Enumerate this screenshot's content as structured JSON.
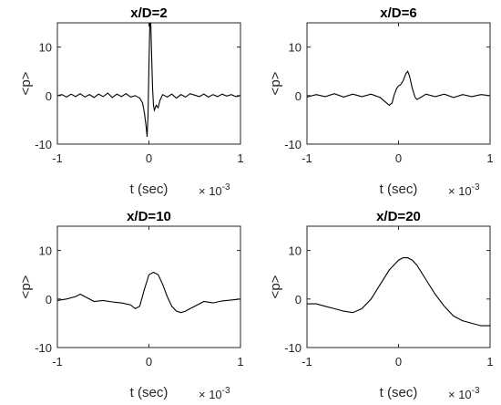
{
  "chart_data": [
    {
      "type": "line",
      "title": "x/D=2",
      "xlabel": "t (sec)",
      "ylabel": "<p>",
      "xlim": [
        -0.001,
        0.001
      ],
      "ylim": [
        -10,
        15
      ],
      "xticks": [
        -1,
        0,
        1
      ],
      "yticks": [
        -10,
        0,
        10
      ],
      "x_exponent_base": "× 10",
      "x_exponent": "-3",
      "series": [
        {
          "x": [
            -1.0,
            -0.95,
            -0.9,
            -0.85,
            -0.8,
            -0.75,
            -0.7,
            -0.65,
            -0.6,
            -0.55,
            -0.5,
            -0.45,
            -0.4,
            -0.35,
            -0.3,
            -0.25,
            -0.2,
            -0.15,
            -0.1,
            -0.07,
            -0.05,
            -0.03,
            -0.02,
            -0.01,
            0.0,
            0.01,
            0.02,
            0.03,
            0.04,
            0.05,
            0.06,
            0.08,
            0.1,
            0.12,
            0.15,
            0.2,
            0.25,
            0.3,
            0.35,
            0.4,
            0.45,
            0.5,
            0.55,
            0.6,
            0.65,
            0.7,
            0.75,
            0.8,
            0.85,
            0.9,
            0.95,
            1.0
          ],
          "y": [
            0.0,
            0.2,
            -0.3,
            0.3,
            -0.2,
            0.4,
            -0.3,
            0.2,
            -0.4,
            0.3,
            -0.2,
            0.5,
            -0.4,
            0.3,
            -0.2,
            0.4,
            -0.3,
            0.0,
            -0.5,
            -1.5,
            -3.5,
            -6.5,
            -8.5,
            -4.0,
            6.0,
            15.0,
            15.0,
            8.0,
            1.5,
            -2.0,
            -3.0,
            -2.0,
            -2.5,
            -1.0,
            0.2,
            -0.3,
            0.3,
            -0.5,
            0.2,
            -0.3,
            0.4,
            0.1,
            -0.2,
            0.3,
            -0.3,
            0.2,
            -0.2,
            0.3,
            -0.1,
            0.2,
            -0.2,
            0.0
          ]
        }
      ]
    },
    {
      "type": "line",
      "title": "x/D=6",
      "xlabel": "t (sec)",
      "ylabel": "<p>",
      "xlim": [
        -0.001,
        0.001
      ],
      "ylim": [
        -10,
        15
      ],
      "xticks": [
        -1,
        0,
        1
      ],
      "yticks": [
        -10,
        0,
        10
      ],
      "x_exponent_base": "× 10",
      "x_exponent": "-3",
      "series": [
        {
          "x": [
            -1.0,
            -0.9,
            -0.8,
            -0.7,
            -0.6,
            -0.5,
            -0.4,
            -0.3,
            -0.2,
            -0.15,
            -0.1,
            -0.07,
            -0.05,
            -0.02,
            0.0,
            0.02,
            0.05,
            0.08,
            0.1,
            0.12,
            0.15,
            0.18,
            0.2,
            0.25,
            0.3,
            0.4,
            0.5,
            0.6,
            0.7,
            0.8,
            0.9,
            1.0
          ],
          "y": [
            -0.3,
            0.2,
            -0.2,
            0.4,
            -0.3,
            0.3,
            -0.2,
            0.3,
            -0.4,
            -1.2,
            -2.0,
            -1.5,
            0.0,
            1.5,
            2.0,
            2.2,
            3.0,
            4.5,
            5.0,
            4.0,
            1.5,
            -0.3,
            -0.8,
            -0.3,
            0.3,
            -0.2,
            0.3,
            -0.4,
            0.2,
            -0.2,
            0.2,
            0.0
          ]
        }
      ]
    },
    {
      "type": "line",
      "title": "x/D=10",
      "xlabel": "t (sec)",
      "ylabel": "<p>",
      "xlim": [
        -0.001,
        0.001
      ],
      "ylim": [
        -10,
        15
      ],
      "xticks": [
        -1,
        0,
        1
      ],
      "yticks": [
        -10,
        0,
        10
      ],
      "x_exponent_base": "× 10",
      "x_exponent": "-3",
      "series": [
        {
          "x": [
            -1.0,
            -0.9,
            -0.8,
            -0.75,
            -0.7,
            -0.6,
            -0.5,
            -0.4,
            -0.3,
            -0.2,
            -0.15,
            -0.1,
            -0.05,
            0.0,
            0.05,
            0.1,
            0.15,
            0.2,
            0.25,
            0.3,
            0.35,
            0.4,
            0.45,
            0.5,
            0.6,
            0.7,
            0.8,
            0.9,
            1.0
          ],
          "y": [
            -0.3,
            0.0,
            0.5,
            1.0,
            0.5,
            -0.5,
            -0.3,
            -0.6,
            -0.8,
            -1.2,
            -2.0,
            -1.5,
            2.0,
            5.0,
            5.5,
            5.0,
            3.0,
            0.5,
            -1.5,
            -2.5,
            -2.8,
            -2.5,
            -2.0,
            -1.5,
            -0.5,
            -0.8,
            -0.4,
            -0.2,
            0.0
          ]
        }
      ]
    },
    {
      "type": "line",
      "title": "x/D=20",
      "xlabel": "t (sec)",
      "ylabel": "<p>",
      "xlim": [
        -0.001,
        0.001
      ],
      "ylim": [
        -10,
        15
      ],
      "xticks": [
        -1,
        0,
        1
      ],
      "yticks": [
        -10,
        0,
        10
      ],
      "x_exponent_base": "× 10",
      "x_exponent": "-3",
      "series": [
        {
          "x": [
            -1.0,
            -0.9,
            -0.8,
            -0.7,
            -0.6,
            -0.5,
            -0.4,
            -0.3,
            -0.2,
            -0.1,
            0.0,
            0.05,
            0.1,
            0.15,
            0.2,
            0.3,
            0.4,
            0.5,
            0.6,
            0.7,
            0.8,
            0.9,
            1.0
          ],
          "y": [
            -1.0,
            -1.0,
            -1.5,
            -2.0,
            -2.5,
            -2.8,
            -2.0,
            0.0,
            3.0,
            6.0,
            8.0,
            8.5,
            8.5,
            8.0,
            7.0,
            4.0,
            1.0,
            -1.5,
            -3.5,
            -4.5,
            -5.0,
            -5.5,
            -5.5
          ]
        }
      ]
    }
  ]
}
